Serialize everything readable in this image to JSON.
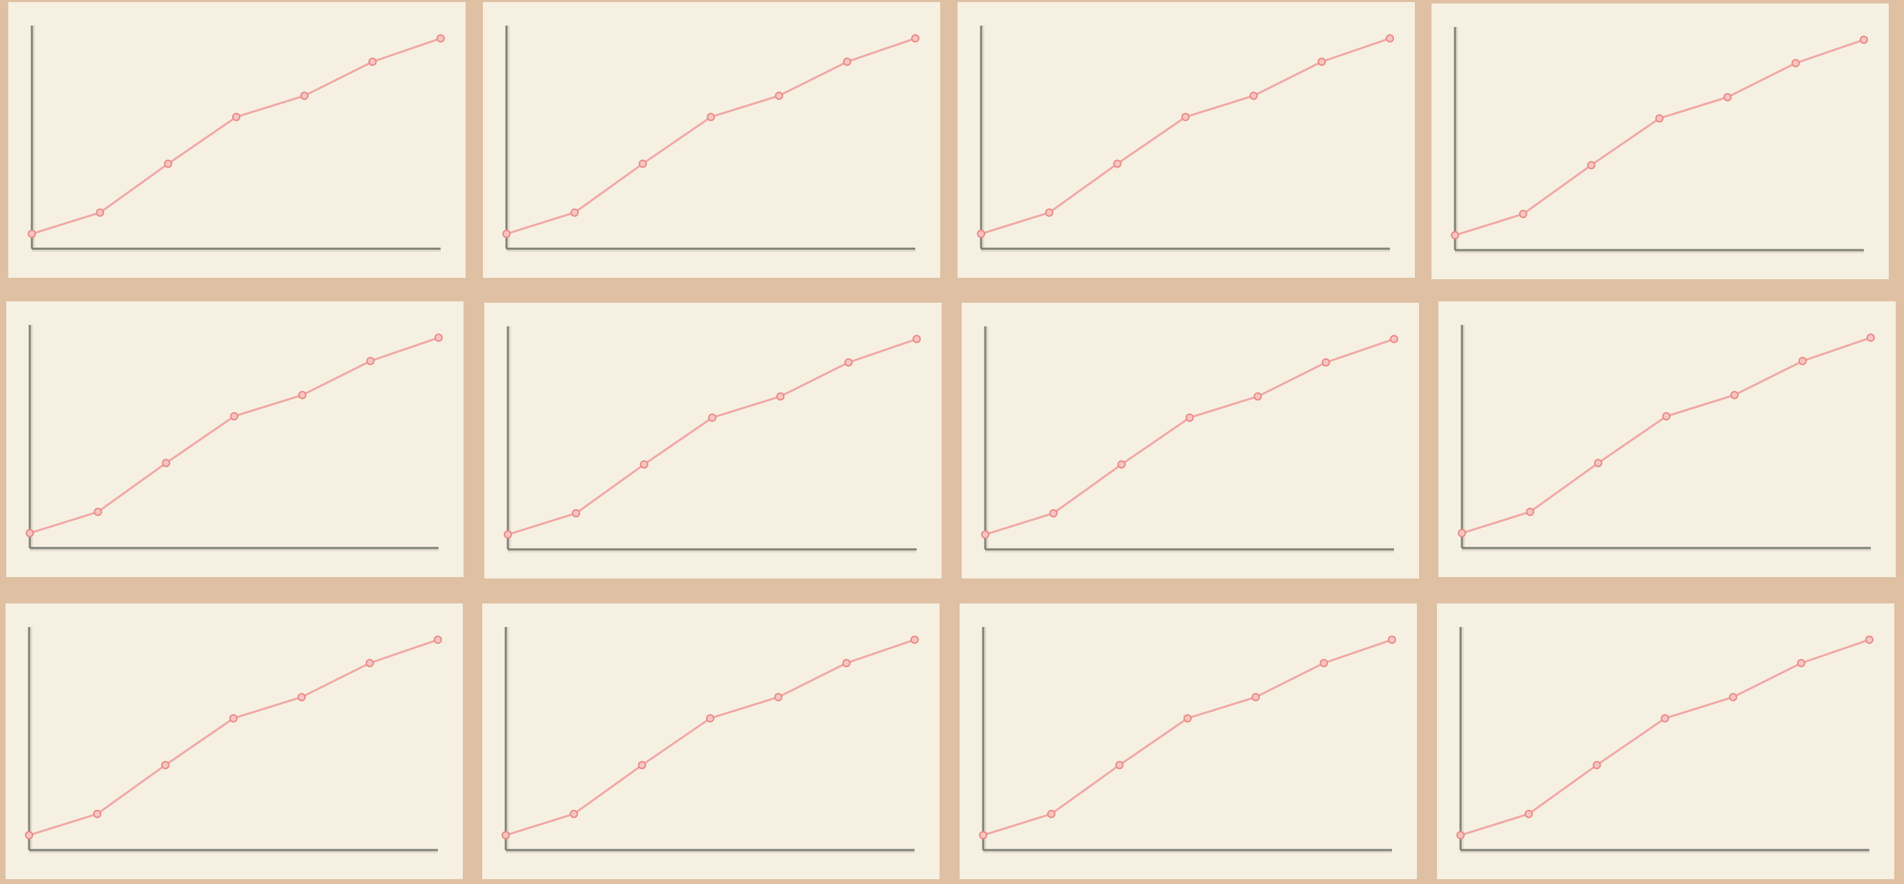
{
  "colors": {
    "background": "#dfc0a2",
    "panel": "#f6f0e2",
    "axis": "#7f8177",
    "series": "#f0a8a5",
    "marker": "#ea8a86"
  },
  "chart_data": [
    {
      "type": "line",
      "title": "",
      "xlabel": "",
      "ylabel": "",
      "grid": false,
      "x": [
        0,
        1,
        2,
        3,
        4,
        5,
        6
      ],
      "series": [
        {
          "values": [
            0.07,
            0.17,
            0.4,
            0.62,
            0.72,
            0.88,
            0.99
          ]
        }
      ],
      "xlim": [
        0,
        6
      ],
      "ylim": [
        0,
        1.05
      ]
    },
    {
      "type": "line",
      "title": "",
      "xlabel": "",
      "ylabel": "",
      "grid": false,
      "x": [
        0,
        1,
        2,
        3,
        4,
        5,
        6
      ],
      "series": [
        {
          "values": [
            0.07,
            0.17,
            0.4,
            0.62,
            0.72,
            0.88,
            0.99
          ]
        }
      ],
      "xlim": [
        0,
        6
      ],
      "ylim": [
        0,
        1.05
      ]
    },
    {
      "type": "line",
      "title": "",
      "xlabel": "",
      "ylabel": "",
      "grid": false,
      "x": [
        0,
        1,
        2,
        3,
        4,
        5,
        6
      ],
      "series": [
        {
          "values": [
            0.07,
            0.17,
            0.4,
            0.62,
            0.72,
            0.88,
            0.99
          ]
        }
      ],
      "xlim": [
        0,
        6
      ],
      "ylim": [
        0,
        1.05
      ]
    },
    {
      "type": "line",
      "title": "",
      "xlabel": "",
      "ylabel": "",
      "grid": false,
      "x": [
        0,
        1,
        2,
        3,
        4,
        5,
        6
      ],
      "series": [
        {
          "values": [
            0.07,
            0.17,
            0.4,
            0.62,
            0.72,
            0.88,
            0.99
          ]
        }
      ],
      "xlim": [
        0,
        6
      ],
      "ylim": [
        0,
        1.05
      ]
    },
    {
      "type": "line",
      "title": "",
      "xlabel": "",
      "ylabel": "",
      "grid": false,
      "x": [
        0,
        1,
        2,
        3,
        4,
        5,
        6
      ],
      "series": [
        {
          "values": [
            0.07,
            0.17,
            0.4,
            0.62,
            0.72,
            0.88,
            0.99
          ]
        }
      ],
      "xlim": [
        0,
        6
      ],
      "ylim": [
        0,
        1.05
      ]
    },
    {
      "type": "line",
      "title": "",
      "xlabel": "",
      "ylabel": "",
      "grid": false,
      "x": [
        0,
        1,
        2,
        3,
        4,
        5,
        6
      ],
      "series": [
        {
          "values": [
            0.07,
            0.17,
            0.4,
            0.62,
            0.72,
            0.88,
            0.99
          ]
        }
      ],
      "xlim": [
        0,
        6
      ],
      "ylim": [
        0,
        1.05
      ]
    },
    {
      "type": "line",
      "title": "",
      "xlabel": "",
      "ylabel": "",
      "grid": false,
      "x": [
        0,
        1,
        2,
        3,
        4,
        5,
        6
      ],
      "series": [
        {
          "values": [
            0.07,
            0.17,
            0.4,
            0.62,
            0.72,
            0.88,
            0.99
          ]
        }
      ],
      "xlim": [
        0,
        6
      ],
      "ylim": [
        0,
        1.05
      ]
    },
    {
      "type": "line",
      "title": "",
      "xlabel": "",
      "ylabel": "",
      "grid": false,
      "x": [
        0,
        1,
        2,
        3,
        4,
        5,
        6
      ],
      "series": [
        {
          "values": [
            0.07,
            0.17,
            0.4,
            0.62,
            0.72,
            0.88,
            0.99
          ]
        }
      ],
      "xlim": [
        0,
        6
      ],
      "ylim": [
        0,
        1.05
      ]
    },
    {
      "type": "line",
      "title": "",
      "xlabel": "",
      "ylabel": "",
      "grid": false,
      "x": [
        0,
        1,
        2,
        3,
        4,
        5,
        6
      ],
      "series": [
        {
          "values": [
            0.07,
            0.17,
            0.4,
            0.62,
            0.72,
            0.88,
            0.99
          ]
        }
      ],
      "xlim": [
        0,
        6
      ],
      "ylim": [
        0,
        1.05
      ]
    },
    {
      "type": "line",
      "title": "",
      "xlabel": "",
      "ylabel": "",
      "grid": false,
      "x": [
        0,
        1,
        2,
        3,
        4,
        5,
        6
      ],
      "series": [
        {
          "values": [
            0.07,
            0.17,
            0.4,
            0.62,
            0.72,
            0.88,
            0.99
          ]
        }
      ],
      "xlim": [
        0,
        6
      ],
      "ylim": [
        0,
        1.05
      ]
    },
    {
      "type": "line",
      "title": "",
      "xlabel": "",
      "ylabel": "",
      "grid": false,
      "x": [
        0,
        1,
        2,
        3,
        4,
        5,
        6
      ],
      "series": [
        {
          "values": [
            0.07,
            0.17,
            0.4,
            0.62,
            0.72,
            0.88,
            0.99
          ]
        }
      ],
      "xlim": [
        0,
        6
      ],
      "ylim": [
        0,
        1.05
      ]
    },
    {
      "type": "line",
      "title": "",
      "xlabel": "",
      "ylabel": "",
      "grid": false,
      "x": [
        0,
        1,
        2,
        3,
        4,
        5,
        6
      ],
      "series": [
        {
          "values": [
            0.07,
            0.17,
            0.4,
            0.62,
            0.72,
            0.88,
            0.99
          ]
        }
      ],
      "xlim": [
        0,
        6
      ],
      "ylim": [
        0,
        1.05
      ]
    }
  ]
}
